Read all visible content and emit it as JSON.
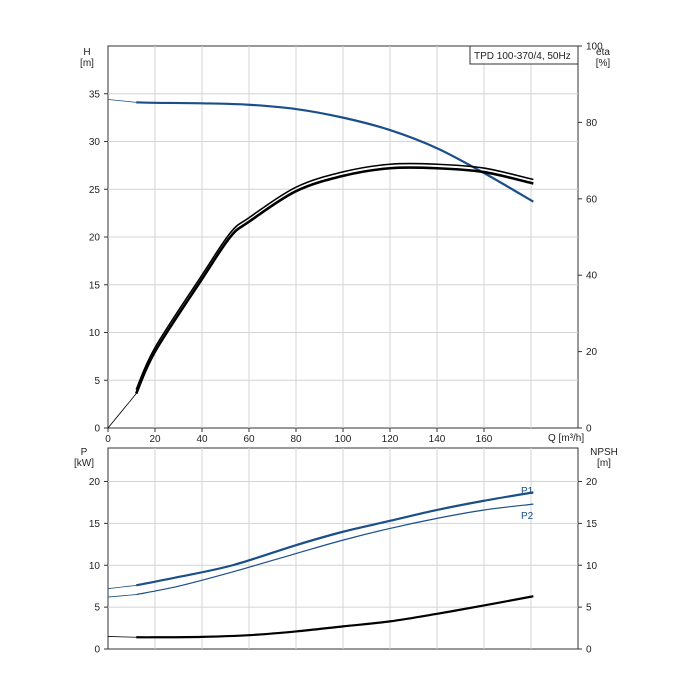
{
  "chart_data": [
    {
      "type": "line",
      "title": "TPD 100-370/4, 50Hz",
      "xlabel": "Q [m³/h]",
      "ylabel_left": "H\n[m]",
      "ylabel_right": "eta\n[%]",
      "xlim": [
        0,
        200
      ],
      "ylim_left": [
        0,
        40
      ],
      "ylim_right": [
        0,
        100
      ],
      "x_ticks": [
        "0",
        "20",
        "40",
        "60",
        "80",
        "100",
        "120",
        "140",
        "160"
      ],
      "y_ticks_left": [
        "0",
        "5",
        "10",
        "15",
        "20",
        "25",
        "30",
        "35"
      ],
      "y_ticks_right": [
        "0",
        "20",
        "40",
        "60",
        "80",
        "100"
      ],
      "grid": true,
      "series": [
        {
          "axis": "left",
          "color": "#1a4f8a",
          "x": [
            12,
            20,
            40,
            60,
            80,
            100,
            120,
            140,
            160,
            181
          ],
          "values": [
            34.1,
            34.05,
            34.0,
            33.85,
            33.4,
            32.5,
            31.2,
            29.3,
            26.7,
            23.7
          ],
          "extension": {
            "x": [
              0,
              12
            ],
            "values": [
              34.4,
              34.1
            ]
          }
        },
        {
          "axis": "right",
          "color": "#000000",
          "style": "double",
          "x": [
            12,
            20,
            40,
            52,
            60,
            80,
            100,
            120,
            140,
            160,
            181
          ],
          "values": [
            9,
            20,
            39,
            50,
            54,
            62,
            66,
            68,
            68,
            67,
            64
          ],
          "extension": {
            "x": [
              0,
              12
            ],
            "values": [
              0,
              9
            ]
          }
        }
      ]
    },
    {
      "type": "line",
      "xlabel": "",
      "ylabel_left": "P\n[kW]",
      "ylabel_right": "NPSH\n[m]",
      "xlim": [
        0,
        200
      ],
      "ylim_left": [
        0,
        24
      ],
      "ylim_right": [
        0,
        24
      ],
      "y_ticks_left": [
        "0",
        "5",
        "10",
        "15",
        "20"
      ],
      "y_ticks_right": [
        "0",
        "5",
        "10",
        "15",
        "20"
      ],
      "grid": true,
      "series": [
        {
          "name": "P1",
          "axis": "left",
          "color": "#1a4f8a",
          "x": [
            12,
            30,
            53,
            80,
            100,
            120,
            140,
            160,
            181
          ],
          "values": [
            7.6,
            8.6,
            10.0,
            12.4,
            14.0,
            15.3,
            16.6,
            17.7,
            18.7
          ],
          "extension": {
            "x": [
              0,
              12
            ],
            "values": [
              7.2,
              7.6
            ]
          }
        },
        {
          "name": "P2",
          "axis": "left",
          "color": "#1a4f8a",
          "x": [
            12,
            30,
            53,
            80,
            100,
            120,
            140,
            160,
            181
          ],
          "values": [
            6.5,
            7.5,
            9.2,
            11.4,
            13.0,
            14.4,
            15.6,
            16.6,
            17.3
          ],
          "extension": {
            "x": [
              0,
              12
            ],
            "values": [
              6.2,
              6.5
            ]
          }
        },
        {
          "axis": "right",
          "color": "#000000",
          "x": [
            12,
            20,
            40,
            60,
            80,
            100,
            120,
            140,
            160,
            181
          ],
          "values": [
            1.4,
            1.4,
            1.45,
            1.65,
            2.1,
            2.7,
            3.3,
            4.2,
            5.2,
            6.3
          ],
          "extension": {
            "x": [
              0,
              12
            ],
            "values": [
              1.5,
              1.4
            ]
          }
        }
      ]
    }
  ]
}
